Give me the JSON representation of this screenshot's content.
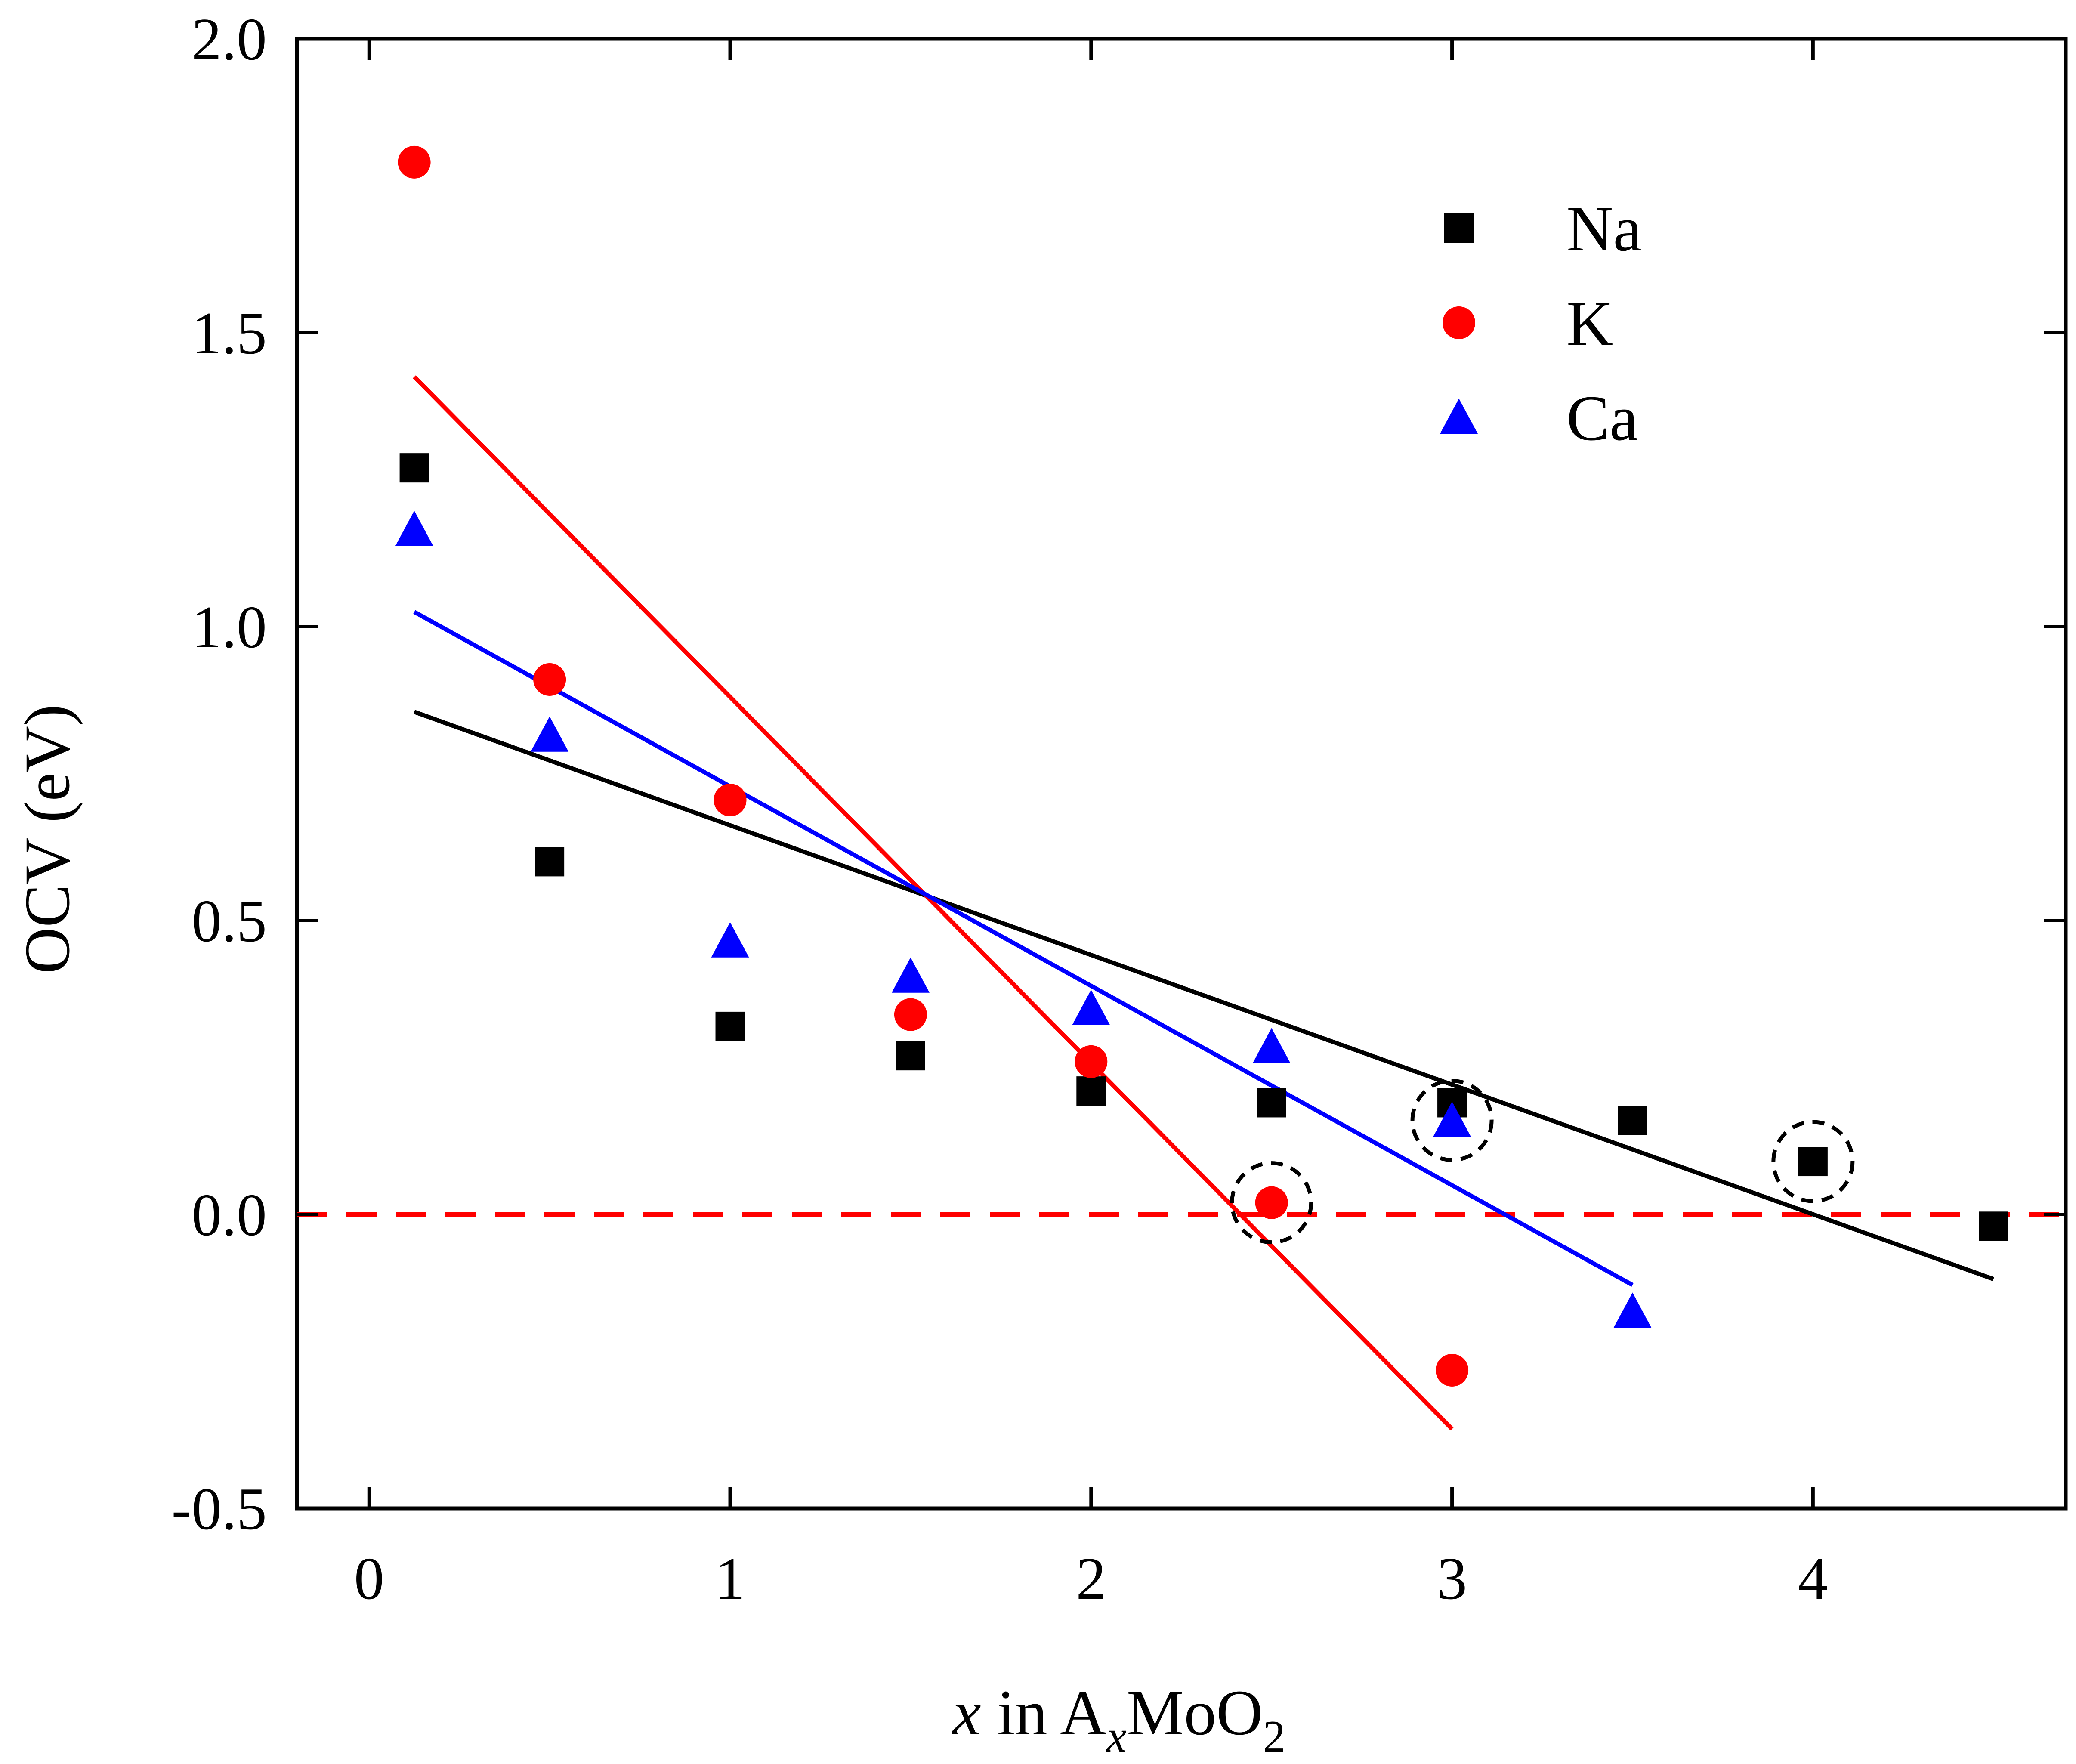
{
  "chart_data": {
    "type": "scatter",
    "title": "",
    "xlabel": {
      "italic": "x",
      "mid": " in A",
      "sub1": "x",
      "mid2": "MoO",
      "sub2": "2"
    },
    "ylabel": "OCV (eV)",
    "xlim": [
      -0.2,
      4.7
    ],
    "ylim": [
      -0.5,
      2.0
    ],
    "xticks": [
      0,
      1,
      2,
      3,
      4
    ],
    "xtick_labels": [
      "0",
      "1",
      "2",
      "3",
      "4"
    ],
    "yticks": [
      -0.5,
      0.0,
      0.5,
      1.0,
      1.5,
      2.0
    ],
    "ytick_labels": [
      "-0.5",
      "0.0",
      "0.5",
      "1.0",
      "1.5",
      "2.0"
    ],
    "legend_position": "top-right",
    "series": [
      {
        "name": "Na",
        "marker": "square",
        "color": "#000000",
        "points": [
          [
            0.125,
            1.27
          ],
          [
            0.5,
            0.6
          ],
          [
            1.0,
            0.32
          ],
          [
            1.5,
            0.27
          ],
          [
            2.0,
            0.21
          ],
          [
            2.5,
            0.19
          ],
          [
            3.0,
            0.19
          ],
          [
            3.5,
            0.16
          ],
          [
            4.0,
            0.09
          ],
          [
            4.5,
            -0.02
          ]
        ],
        "fit": [
          [
            0.125,
            0.855
          ],
          [
            4.5,
            -0.11
          ]
        ]
      },
      {
        "name": "K",
        "marker": "circle",
        "color": "#ff0000",
        "points": [
          [
            0.125,
            1.79
          ],
          [
            0.5,
            0.91
          ],
          [
            1.0,
            0.705
          ],
          [
            1.5,
            0.34
          ],
          [
            2.0,
            0.26
          ],
          [
            2.5,
            0.02
          ],
          [
            3.0,
            -0.265
          ]
        ],
        "fit": [
          [
            0.125,
            1.425
          ],
          [
            3.0,
            -0.365
          ]
        ]
      },
      {
        "name": "Ca",
        "marker": "triangle",
        "color": "#0000ff",
        "points": [
          [
            0.125,
            1.165
          ],
          [
            0.5,
            0.815
          ],
          [
            1.0,
            0.465
          ],
          [
            1.5,
            0.405
          ],
          [
            2.0,
            0.35
          ],
          [
            2.5,
            0.285
          ],
          [
            3.0,
            0.16
          ],
          [
            3.5,
            -0.165
          ]
        ],
        "fit": [
          [
            0.125,
            1.025
          ],
          [
            3.5,
            -0.12
          ]
        ]
      }
    ],
    "reference_line": {
      "y": 0.0,
      "style": "dashed",
      "color": "#ff0000"
    },
    "highlighted_points": [
      {
        "x": 2.5,
        "y": 0.02,
        "series": "K",
        "style": "dashed-circle"
      },
      {
        "x": 3.0,
        "y": 0.16,
        "series": "Ca",
        "style": "dashed-circle"
      },
      {
        "x": 4.0,
        "y": 0.09,
        "series": "Na",
        "style": "dashed-circle"
      }
    ]
  }
}
